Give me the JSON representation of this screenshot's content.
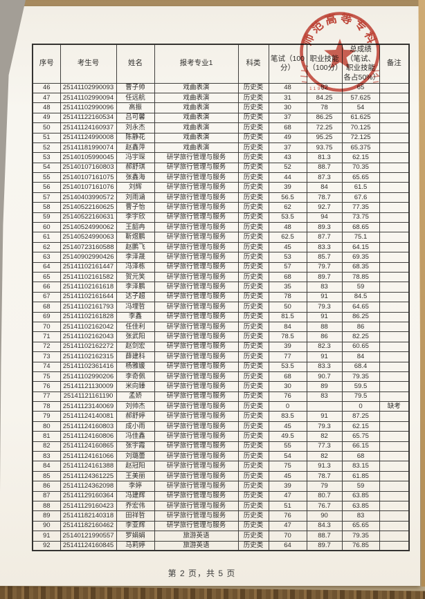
{
  "document": {
    "footer": "第 2 页，共 5 页"
  },
  "stamp": {
    "arc_text": "师范高等专科",
    "serial_digits": "11923",
    "color": "#c2392c"
  },
  "table": {
    "headers": [
      "序号",
      "考生号",
      "姓名",
      "报考专业1",
      "科类",
      "笔试（100分）",
      "职业技能（100分）",
      "总成绩（笔试、职业技能各占50%）",
      "备注"
    ],
    "rows": [
      [
        "46",
        "25141102990093",
        "曹子帅",
        "戏曲表演",
        "历史类",
        "48",
        "82",
        "65",
        ""
      ],
      [
        "47",
        "25141102990094",
        "任远航",
        "戏曲表演",
        "历史类",
        "31",
        "84.25",
        "57.625",
        ""
      ],
      [
        "48",
        "25141102990096",
        "高振",
        "戏曲表演",
        "历史类",
        "30",
        "78",
        "54",
        ""
      ],
      [
        "49",
        "25141122160534",
        "吕可馨",
        "戏曲表演",
        "历史类",
        "37",
        "86.25",
        "61.625",
        ""
      ],
      [
        "50",
        "25141124160937",
        "刘永杰",
        "戏曲表演",
        "历史类",
        "68",
        "72.25",
        "70.125",
        ""
      ],
      [
        "51",
        "25141124990008",
        "陈静花",
        "戏曲表演",
        "历史类",
        "49",
        "95.25",
        "72.125",
        ""
      ],
      [
        "52",
        "25141181990074",
        "赵鑫萍",
        "戏曲表演",
        "历史类",
        "37",
        "93.75",
        "65.375",
        ""
      ],
      [
        "53",
        "25140105990045",
        "冯宇琛",
        "研学旅行管理与服务",
        "历史类",
        "43",
        "81.3",
        "62.15",
        ""
      ],
      [
        "54",
        "25140107160803",
        "郝舒琪",
        "研学旅行管理与服务",
        "历史类",
        "52",
        "88.7",
        "70.35",
        ""
      ],
      [
        "55",
        "25140107161075",
        "张鑫海",
        "研学旅行管理与服务",
        "历史类",
        "44",
        "87.3",
        "65.65",
        ""
      ],
      [
        "56",
        "25140107161076",
        "刘辉",
        "研学旅行管理与服务",
        "历史类",
        "39",
        "84",
        "61.5",
        ""
      ],
      [
        "57",
        "25140403990572",
        "刘雨涵",
        "研学旅行管理与服务",
        "历史类",
        "56.5",
        "78.7",
        "67.6",
        ""
      ],
      [
        "58",
        "25140522160625",
        "曹子怡",
        "研学旅行管理与服务",
        "历史类",
        "62",
        "92.7",
        "77.35",
        ""
      ],
      [
        "59",
        "25140522160631",
        "李宇欣",
        "研学旅行管理与服务",
        "历史类",
        "53.5",
        "94",
        "73.75",
        ""
      ],
      [
        "60",
        "25140524990062",
        "王韶冉",
        "研学旅行管理与服务",
        "历史类",
        "48",
        "89.3",
        "68.65",
        ""
      ],
      [
        "61",
        "25140524990063",
        "靳煜鹏",
        "研学旅行管理与服务",
        "历史类",
        "62.5",
        "87.7",
        "75.1",
        ""
      ],
      [
        "62",
        "25140723160588",
        "赵鹏飞",
        "研学旅行管理与服务",
        "历史类",
        "45",
        "83.3",
        "64.15",
        ""
      ],
      [
        "63",
        "25140902990426",
        "李泽晟",
        "研学旅行管理与服务",
        "历史类",
        "53",
        "85.7",
        "69.35",
        ""
      ],
      [
        "64",
        "25141102161447",
        "冯泽栋",
        "研学旅行管理与服务",
        "历史类",
        "57",
        "79.7",
        "68.35",
        ""
      ],
      [
        "65",
        "25141102161582",
        "贺元笑",
        "研学旅行管理与服务",
        "历史类",
        "68",
        "89.7",
        "78.85",
        ""
      ],
      [
        "66",
        "25141102161618",
        "李泽鹏",
        "研学旅行管理与服务",
        "历史类",
        "35",
        "83",
        "59",
        ""
      ],
      [
        "67",
        "25141102161644",
        "达子超",
        "研学旅行管理与服务",
        "历史类",
        "78",
        "91",
        "84.5",
        ""
      ],
      [
        "68",
        "25141102161793",
        "冯埋哲",
        "研学旅行管理与服务",
        "历史类",
        "50",
        "79.3",
        "64.65",
        ""
      ],
      [
        "69",
        "25141102161828",
        "李鑫",
        "研学旅行管理与服务",
        "历史类",
        "81.5",
        "91",
        "86.25",
        ""
      ],
      [
        "70",
        "25141102162042",
        "任佳利",
        "研学旅行管理与服务",
        "历史类",
        "84",
        "88",
        "86",
        ""
      ],
      [
        "71",
        "25141102162043",
        "张武阳",
        "研学旅行管理与服务",
        "历史类",
        "78.5",
        "86",
        "82.25",
        ""
      ],
      [
        "72",
        "25141102162272",
        "赵剑宏",
        "研学旅行管理与服务",
        "历史类",
        "39",
        "82.3",
        "60.65",
        ""
      ],
      [
        "73",
        "25141102162315",
        "薛建科",
        "研学旅行管理与服务",
        "历史类",
        "77",
        "91",
        "84",
        ""
      ],
      [
        "74",
        "25141102361416",
        "杨雅媛",
        "研学旅行管理与服务",
        "历史类",
        "53.5",
        "83.3",
        "68.4",
        ""
      ],
      [
        "75",
        "25141102990206",
        "李奇佩",
        "研学旅行管理与服务",
        "历史类",
        "68",
        "90.7",
        "79.35",
        ""
      ],
      [
        "76",
        "25141121130009",
        "米向臻",
        "研学旅行管理与服务",
        "历史类",
        "30",
        "89",
        "59.5",
        ""
      ],
      [
        "77",
        "25141121161190",
        "孟娇",
        "研学旅行管理与服务",
        "历史类",
        "76",
        "83",
        "79.5",
        ""
      ],
      [
        "78",
        "25141123140069",
        "刘帅杰",
        "研学旅行管理与服务",
        "历史类",
        "0",
        "",
        "0",
        "缺考"
      ],
      [
        "79",
        "25141124140081",
        "郝舒婷",
        "研学旅行管理与服务",
        "历史类",
        "83.5",
        "91",
        "87.25",
        ""
      ],
      [
        "80",
        "25141124160803",
        "成小雨",
        "研学旅行管理与服务",
        "历史类",
        "45",
        "79.3",
        "62.15",
        ""
      ],
      [
        "81",
        "25141124160806",
        "冯佳鑫",
        "研学旅行管理与服务",
        "历史类",
        "49.5",
        "82",
        "65.75",
        ""
      ],
      [
        "82",
        "25141124160865",
        "张宇霞",
        "研学旅行管理与服务",
        "历史类",
        "55",
        "77.3",
        "66.15",
        ""
      ],
      [
        "83",
        "25141124161066",
        "刘璐蕾",
        "研学旅行管理与服务",
        "历史类",
        "54",
        "82",
        "68",
        ""
      ],
      [
        "84",
        "25141124161388",
        "赵冠阳",
        "研学旅行管理与服务",
        "历史类",
        "75",
        "91.3",
        "83.15",
        ""
      ],
      [
        "85",
        "25141124361225",
        "王美丽",
        "研学旅行管理与服务",
        "历史类",
        "45",
        "78.7",
        "61.85",
        ""
      ],
      [
        "86",
        "25141124362098",
        "李婷",
        "研学旅行管理与服务",
        "历史类",
        "39",
        "79",
        "59",
        ""
      ],
      [
        "87",
        "25141129160364",
        "冯建辉",
        "研学旅行管理与服务",
        "历史类",
        "47",
        "80.7",
        "63.85",
        ""
      ],
      [
        "88",
        "25141129160423",
        "乔宏伟",
        "研学旅行管理与服务",
        "历史类",
        "51",
        "76.7",
        "63.85",
        ""
      ],
      [
        "89",
        "25141182140318",
        "田祥哲",
        "研学旅行管理与服务",
        "历史类",
        "76",
        "90",
        "83",
        ""
      ],
      [
        "90",
        "25141182160462",
        "李亚辉",
        "研学旅行管理与服务",
        "历史类",
        "47",
        "84.3",
        "65.65",
        ""
      ],
      [
        "91",
        "25140121990557",
        "罗娟娟",
        "旅游英语",
        "历史类",
        "70",
        "88.7",
        "79.35",
        ""
      ],
      [
        "92",
        "25141124160845",
        "马莉婷",
        "旅游英语",
        "历史类",
        "64",
        "89.7",
        "76.85",
        ""
      ]
    ]
  }
}
